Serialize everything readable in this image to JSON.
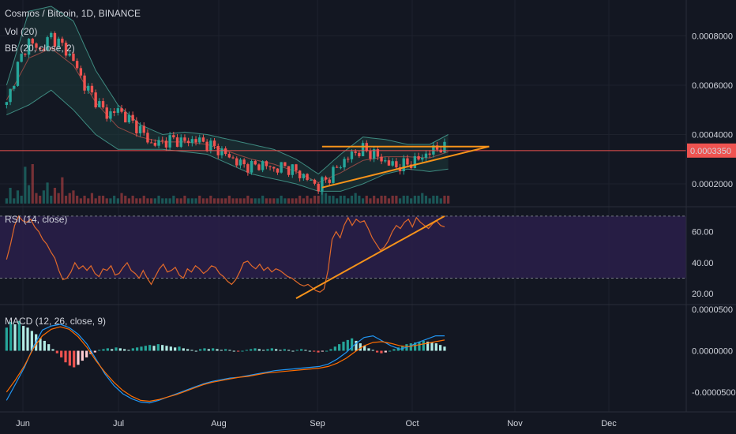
{
  "header": {
    "symbol_line": "Cosmos / Bitcoin, 1D, BINANCE",
    "vol_label": "Vol (20)",
    "bb_label": "BB (20, close, 2)",
    "rsi_label": "RSI (14, close)",
    "macd_label": "MACD (12, 26, close, 9)"
  },
  "colors": {
    "background": "#131722",
    "up": "#26a69a",
    "down": "#ef5350",
    "rsi_line": "#e0692a",
    "rsi_band": "#2a1f4a",
    "trendline": "#f7931a",
    "price_line": "#ef5350",
    "bb_band": "#1e3b3a",
    "bb_line": "#3e8a80",
    "macd_line": "#2196f3",
    "signal_line": "#ff6d00",
    "hist_light": "#b2ebe4"
  },
  "chart_data": [
    {
      "type": "candlestick",
      "title": "Cosmos / Bitcoin, 1D, BINANCE",
      "x_labels": [
        "Jun",
        "Jul",
        "Aug",
        "Sep",
        "Oct",
        "Nov",
        "Dec"
      ],
      "y_ticks": [
        "0.0008000",
        "0.0006000",
        "0.0004000",
        "0.0002000"
      ],
      "current_price_label": "0.0003350",
      "current_price": 0.000335,
      "ylim": [
        0.00012,
        0.00092
      ],
      "series_close_points": [
        [
          0,
          0.00052
        ],
        [
          3,
          0.00068
        ],
        [
          6,
          0.00078
        ],
        [
          9,
          0.00074
        ],
        [
          12,
          0.0008
        ],
        [
          15,
          0.00076
        ],
        [
          18,
          0.0007
        ],
        [
          21,
          0.0006
        ],
        [
          24,
          0.00054
        ],
        [
          27,
          0.00048
        ],
        [
          30,
          0.0005
        ],
        [
          33,
          0.00046
        ],
        [
          36,
          0.00042
        ],
        [
          39,
          0.00036
        ],
        [
          42,
          0.00037
        ],
        [
          45,
          0.00038
        ],
        [
          48,
          0.00037
        ],
        [
          51,
          0.00038
        ],
        [
          54,
          0.00036
        ],
        [
          57,
          0.00034
        ],
        [
          60,
          0.00031
        ],
        [
          63,
          0.00028
        ],
        [
          66,
          0.00027
        ],
        [
          69,
          0.00028
        ],
        [
          72,
          0.00026
        ],
        [
          75,
          0.00027
        ],
        [
          78,
          0.00025
        ],
        [
          81,
          0.00022
        ],
        [
          84,
          0.00019
        ],
        [
          87,
          0.00023
        ],
        [
          90,
          0.00028
        ],
        [
          93,
          0.00032
        ],
        [
          96,
          0.00034
        ],
        [
          99,
          0.00032
        ],
        [
          102,
          0.00029
        ],
        [
          105,
          0.00027
        ],
        [
          108,
          0.00028
        ],
        [
          111,
          0.0003
        ],
        [
          114,
          0.00033
        ],
        [
          117,
          0.00035
        ],
        [
          119,
          0.000335
        ]
      ],
      "bollinger_upper": [
        [
          0,
          0.0006
        ],
        [
          6,
          0.0009
        ],
        [
          12,
          0.00092
        ],
        [
          18,
          0.00086
        ],
        [
          24,
          0.00066
        ],
        [
          30,
          0.00052
        ],
        [
          36,
          0.00044
        ],
        [
          42,
          0.0004
        ],
        [
          48,
          0.00041
        ],
        [
          54,
          0.0004
        ],
        [
          60,
          0.00038
        ],
        [
          66,
          0.00036
        ],
        [
          72,
          0.00034
        ],
        [
          78,
          0.0003
        ],
        [
          84,
          0.00024
        ],
        [
          90,
          0.00032
        ],
        [
          96,
          0.00039
        ],
        [
          102,
          0.00038
        ],
        [
          108,
          0.00036
        ],
        [
          114,
          0.00036
        ],
        [
          119,
          0.0004
        ]
      ],
      "bollinger_lower": [
        [
          0,
          0.00048
        ],
        [
          6,
          0.00052
        ],
        [
          12,
          0.00058
        ],
        [
          18,
          0.0005
        ],
        [
          24,
          0.0004
        ],
        [
          30,
          0.00034
        ],
        [
          36,
          0.00034
        ],
        [
          42,
          0.00034
        ],
        [
          48,
          0.00033
        ],
        [
          54,
          0.00032
        ],
        [
          60,
          0.00028
        ],
        [
          66,
          0.00024
        ],
        [
          72,
          0.00022
        ],
        [
          78,
          0.0002
        ],
        [
          84,
          0.00017
        ],
        [
          90,
          0.00017
        ],
        [
          96,
          0.0002
        ],
        [
          102,
          0.00024
        ],
        [
          108,
          0.00026
        ],
        [
          114,
          0.00025
        ],
        [
          119,
          0.00026
        ]
      ],
      "annotations": [
        {
          "type": "horizontal_resistance",
          "from_index": 85,
          "to_index": 130,
          "value": 0.000345
        },
        {
          "type": "ascending_support",
          "from": [
            85,
            0.000185
          ],
          "to": [
            130,
            0.000345
          ]
        }
      ]
    },
    {
      "type": "bar",
      "title": "Vol (20)",
      "values": [
        2,
        6,
        2,
        5,
        3,
        14,
        7,
        15,
        4,
        3,
        5,
        8,
        3,
        6,
        4,
        10,
        3,
        4,
        5,
        3,
        2,
        3,
        2,
        4,
        2,
        3,
        3,
        2,
        2,
        3,
        2,
        4,
        3,
        2,
        3,
        2,
        2,
        3,
        2,
        2,
        2,
        3,
        2,
        2,
        2,
        3,
        2,
        2,
        3,
        2,
        2,
        2,
        3,
        2,
        2,
        3,
        2,
        2,
        2,
        2,
        3,
        2,
        2,
        2,
        2,
        3,
        2,
        2,
        2,
        3,
        2,
        2,
        2,
        2,
        3,
        2,
        2,
        2,
        2,
        3,
        2,
        3,
        2,
        3,
        3,
        5,
        4,
        3,
        3,
        2,
        3,
        3,
        2,
        3,
        4,
        3,
        2,
        3,
        2,
        3,
        2,
        3,
        3,
        2,
        3,
        3,
        2,
        3,
        3,
        2,
        3,
        3,
        4,
        3,
        2,
        3,
        3,
        2,
        3,
        3
      ]
    },
    {
      "type": "line",
      "title": "RSI (14, close)",
      "y_ticks": [
        "60.00",
        "40.00",
        "20.00"
      ],
      "ylim": [
        14,
        74
      ],
      "band": [
        30,
        70
      ],
      "values": [
        42,
        52,
        64,
        70,
        67,
        66,
        68,
        63,
        60,
        55,
        52,
        47,
        43,
        35,
        29,
        30,
        34,
        40,
        36,
        38,
        35,
        38,
        33,
        31,
        36,
        35,
        38,
        32,
        33,
        37,
        40,
        35,
        33,
        30,
        35,
        30,
        26,
        31,
        36,
        39,
        34,
        35,
        37,
        32,
        30,
        36,
        34,
        38,
        36,
        33,
        35,
        38,
        37,
        33,
        31,
        28,
        26,
        29,
        34,
        40,
        41,
        38,
        36,
        39,
        35,
        37,
        34,
        36,
        35,
        33,
        31,
        30,
        28,
        26,
        25,
        26,
        24,
        22,
        21,
        23,
        35,
        55,
        60,
        56,
        64,
        69,
        64,
        68,
        66,
        67,
        62,
        56,
        52,
        48,
        50,
        54,
        60,
        64,
        62,
        66,
        68,
        63,
        69,
        66,
        64,
        62,
        65,
        67,
        64,
        63
      ],
      "trendline": {
        "from": [
          78,
          17
        ],
        "to": [
          118,
          70
        ]
      }
    },
    {
      "type": "bar",
      "title": "MACD (12, 26, close, 9)",
      "y_ticks": [
        "0.0000500",
        "0.0000000",
        "-0.0000500"
      ],
      "ylim": [
        -7.2e-05,
        5.2e-05
      ],
      "histogram": [
        2.8,
        3.5,
        3.2,
        3.6,
        3.0,
        2.8,
        2.4,
        2.0,
        1.5,
        1.2,
        0.8,
        0.2,
        -0.3,
        -0.8,
        -1.4,
        -1.8,
        -2.0,
        -1.7,
        -1.2,
        -0.8,
        -0.4,
        -0.2,
        0.1,
        0.2,
        0.3,
        0.2,
        0.4,
        0.3,
        0.2,
        0.1,
        0.3,
        0.4,
        0.5,
        0.6,
        0.7,
        0.6,
        0.8,
        0.7,
        0.6,
        0.5,
        0.4,
        0.5,
        0.3,
        0.2,
        0.1,
        0.0,
        0.2,
        0.3,
        0.2,
        0.3,
        0.2,
        0.1,
        0.2,
        0.1,
        0.0,
        -0.1,
        0.0,
        0.1,
        0.2,
        0.3,
        0.2,
        0.1,
        0.2,
        0.3,
        0.2,
        0.1,
        0.2,
        0.1,
        0.0,
        0.1,
        0.2,
        0.1,
        0.0,
        -0.1,
        -0.2,
        -0.1,
        0.0,
        0.2,
        0.5,
        0.8,
        1.1,
        1.3,
        1.5,
        1.2,
        0.9,
        0.6,
        0.3,
        0.1,
        -0.2,
        -0.3,
        -0.2,
        0.0,
        0.2,
        0.4,
        0.6,
        0.8,
        0.9,
        1.0,
        1.1,
        1.2,
        1.1,
        1.0,
        0.9,
        0.7,
        0.5
      ],
      "macd_line": [
        -6.0,
        -4.0,
        -2.0,
        0.5,
        2.5,
        3.0,
        3.2,
        2.8,
        2.0,
        0.8,
        -1.0,
        -2.8,
        -4.2,
        -5.2,
        -5.8,
        -6.2,
        -6.3,
        -6.0,
        -5.6,
        -5.2,
        -4.8,
        -4.4,
        -4.0,
        -3.7,
        -3.5,
        -3.3,
        -3.2,
        -3.0,
        -2.8,
        -2.6,
        -2.4,
        -2.3,
        -2.2,
        -2.1,
        -2.0,
        -1.9,
        -1.6,
        -1.0,
        -0.2,
        0.8,
        1.6,
        1.8,
        1.2,
        0.6,
        0.2,
        0.5,
        1.0,
        1.4,
        1.8,
        1.8
      ],
      "signal_line": [
        -5.0,
        -3.5,
        -1.8,
        0.3,
        1.8,
        2.6,
        2.9,
        2.6,
        1.7,
        0.4,
        -1.2,
        -2.6,
        -3.8,
        -4.8,
        -5.5,
        -6.0,
        -6.1,
        -5.9,
        -5.6,
        -5.3,
        -4.9,
        -4.5,
        -4.1,
        -3.8,
        -3.6,
        -3.4,
        -3.2,
        -3.1,
        -2.9,
        -2.7,
        -2.6,
        -2.5,
        -2.4,
        -2.3,
        -2.2,
        -2.1,
        -1.9,
        -1.5,
        -0.9,
        -0.1,
        0.6,
        1.0,
        1.1,
        0.9,
        0.6,
        0.5,
        0.7,
        0.9,
        1.1,
        1.3
      ]
    }
  ]
}
